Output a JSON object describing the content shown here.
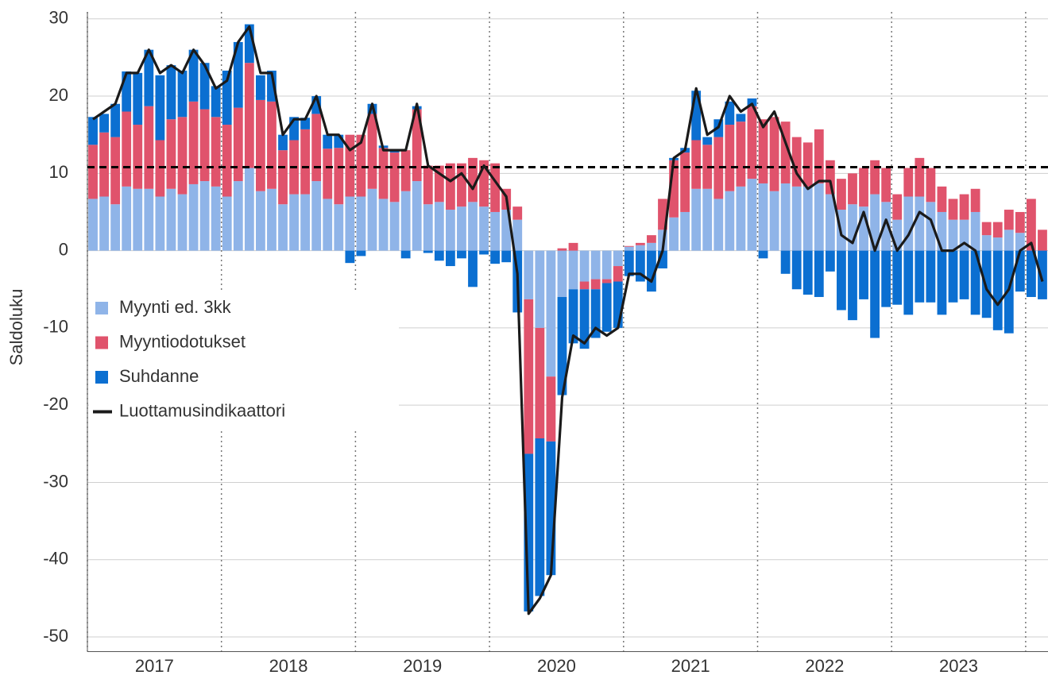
{
  "chart_data": {
    "type": "stacked_bar_line",
    "ylabel": "Saldoluku",
    "categories": [
      null,
      null,
      null,
      null,
      null,
      null,
      "2017",
      null,
      null,
      null,
      null,
      null,
      null,
      null,
      null,
      null,
      null,
      null,
      "2018",
      null,
      null,
      null,
      null,
      null,
      null,
      null,
      null,
      null,
      null,
      null,
      "2019",
      null,
      null,
      null,
      null,
      null,
      null,
      null,
      null,
      null,
      null,
      null,
      "2020",
      null,
      null,
      null,
      null,
      null,
      null,
      null,
      null,
      null,
      null,
      null,
      "2021",
      null,
      null,
      null,
      null,
      null,
      null,
      null,
      null,
      null,
      null,
      null,
      "2022",
      null,
      null,
      null,
      null,
      null,
      null,
      null,
      null,
      null,
      null,
      null,
      "2023",
      null,
      null,
      null,
      null,
      null,
      null,
      null
    ],
    "series": [
      {
        "name": "Myynti ed. 3kk",
        "color": "#8fb4e8",
        "values": [
          6.7,
          7,
          6,
          8.3,
          8,
          8,
          7,
          8,
          7.3,
          8.6,
          9,
          8.3,
          7,
          9,
          10.7,
          7.7,
          8,
          6,
          7.3,
          7.3,
          9,
          6.7,
          6,
          7,
          7,
          8,
          6.7,
          6.3,
          7.7,
          9,
          6,
          6.3,
          5.3,
          5.7,
          6.3,
          5.7,
          5,
          5.3,
          4,
          -6.3,
          -10,
          -16.3,
          -6,
          -5,
          -4,
          -3.7,
          -3.7,
          -2,
          0.5,
          0.7,
          1,
          2.7,
          4.3,
          5,
          8,
          8,
          6.7,
          7.7,
          8.3,
          9.3,
          8.7,
          7.7,
          8.7,
          8.3,
          8.3,
          8.7,
          7.3,
          5.3,
          6,
          5.7,
          7.3,
          6.3,
          4,
          7,
          7,
          6.3,
          5,
          4,
          4,
          5,
          2,
          1.7,
          2.7,
          2.3,
          0,
          0
        ]
      },
      {
        "name": "Myyntiodotukset",
        "color": "#e0536c",
        "values": [
          7,
          8.3,
          8.7,
          9.7,
          8.3,
          10.7,
          7.3,
          9,
          10,
          10.7,
          9.3,
          9,
          9.3,
          9.5,
          13.6,
          11.8,
          11.3,
          7,
          7,
          8.4,
          8.7,
          6.5,
          7.3,
          8,
          8,
          9.7,
          6.6,
          6.4,
          5.3,
          9.3,
          5,
          4.7,
          6,
          5.6,
          5.7,
          6,
          6.3,
          2.7,
          1.7,
          -20,
          -14.3,
          -8.4,
          0.3,
          1,
          -1,
          -1.3,
          -0.5,
          -2,
          0.1,
          0.3,
          1,
          4,
          7.4,
          7.7,
          6.3,
          5.7,
          8,
          8.6,
          8.4,
          9.4,
          8.3,
          9.6,
          8,
          6.4,
          5.7,
          7,
          4.4,
          4,
          4,
          5,
          4.4,
          4.4,
          3.3,
          3.7,
          5,
          4.4,
          3.3,
          2.7,
          3.3,
          3,
          1.7,
          2,
          2.6,
          2.7,
          6.7,
          2.7
        ]
      },
      {
        "name": "Suhdanne",
        "color": "#0b6fd1",
        "values": [
          3.6,
          2.4,
          4.3,
          5.2,
          6.7,
          7.3,
          8.4,
          7,
          6,
          6.7,
          6,
          4,
          7,
          8.5,
          5,
          3.2,
          4,
          2,
          3,
          1.5,
          2.3,
          1.8,
          1.7,
          -1.6,
          -0.7,
          1.3,
          0.3,
          0.3,
          -1,
          0.4,
          -0.3,
          -1.3,
          -2,
          -1,
          -4.7,
          -0.5,
          -1.7,
          -1.5,
          -8,
          -20.4,
          -20.4,
          -17.3,
          -12.7,
          -7,
          -7.7,
          -6.3,
          -6.3,
          -6,
          -3.3,
          -4,
          -5.3,
          -2.3,
          0.3,
          0.6,
          6.4,
          1,
          2.3,
          3,
          1,
          1,
          -1,
          0,
          -3,
          -5,
          -5.7,
          -6,
          -2.7,
          -7.7,
          -9,
          -6.3,
          -11.3,
          -7.3,
          -7,
          -8.3,
          -6.7,
          -6.7,
          -8.3,
          -6.7,
          -6.3,
          -8.3,
          -8.7,
          -10.3,
          -10.7,
          -5.3,
          -6,
          -6.3
        ]
      },
      {
        "name": "Luottamusindikaattori",
        "color": "#1a1a1a",
        "kind": "line",
        "values": [
          17,
          18,
          19,
          23,
          23,
          26,
          23,
          24,
          23,
          26,
          24,
          21,
          22,
          27,
          29,
          23,
          23,
          15,
          17,
          17,
          20,
          15,
          15,
          13,
          14,
          19,
          13,
          13,
          13,
          19,
          11,
          10,
          9,
          10,
          8,
          11,
          9,
          7,
          -3,
          -47,
          -45,
          -42,
          -19,
          -11,
          -12,
          -10,
          -11,
          -10,
          -3,
          -3,
          -4,
          0,
          12,
          13,
          21,
          15,
          16,
          20,
          18,
          19,
          16,
          18,
          14,
          10,
          8,
          9,
          9,
          2,
          1,
          5,
          0,
          4,
          0,
          2,
          5,
          4,
          0,
          0,
          1,
          0,
          -5,
          -7,
          -5,
          0,
          1,
          -4
        ]
      }
    ],
    "hline": {
      "value": 10.8,
      "color": "#000000",
      "style": "dashed"
    },
    "ylim": [
      -51.9,
      30.9
    ],
    "yticks": [
      -50,
      -40,
      -30,
      -20,
      -10,
      0,
      10,
      20,
      30
    ],
    "grid": true,
    "legend": "left"
  }
}
